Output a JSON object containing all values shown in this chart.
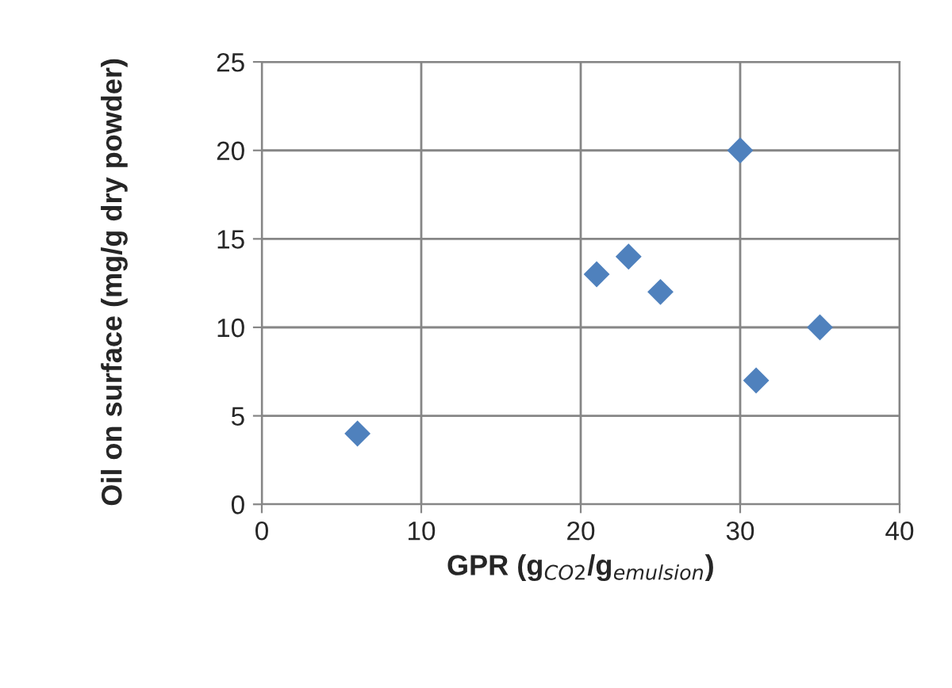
{
  "chart_data": {
    "type": "scatter",
    "xlabel": "GPR (g$_{CO2}$/g$_{emulsion}$)",
    "ylabel": "Oil on surface (mg/g dry powder)",
    "x": [
      6,
      21,
      23,
      25,
      30,
      31,
      35
    ],
    "series": [
      {
        "color": "#4f81bd",
        "values": [
          4,
          13,
          14,
          12,
          20,
          7,
          10
        ]
      }
    ],
    "xlim": [
      0,
      40
    ],
    "xticks": [
      0,
      10,
      20,
      30,
      40
    ],
    "ylim": [
      0,
      25
    ],
    "yticks": [
      0,
      5,
      10,
      15,
      20,
      25
    ],
    "grid": true,
    "marker": "diamond",
    "legend": false
  }
}
